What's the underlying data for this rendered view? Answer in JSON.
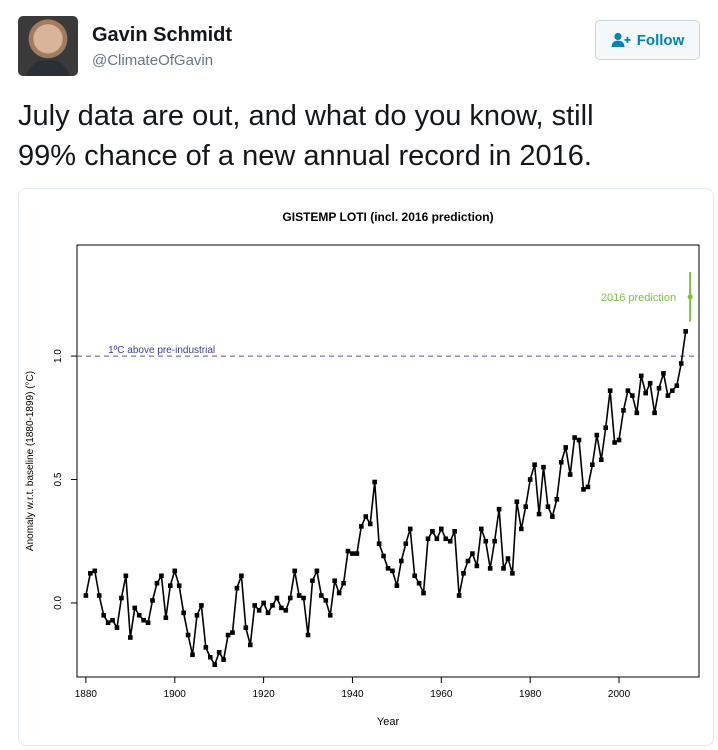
{
  "tweet": {
    "display_name": "Gavin Schmidt",
    "screen_name": "@ClimateOfGavin",
    "follow_label": "Follow",
    "text_line1": "July data are out, and what do you know, still",
    "text_line2": "99% chance of a new annual record in 2016."
  },
  "icons": {
    "follow": "add-user-icon",
    "avatar": "user-photo"
  },
  "colors": {
    "series": "#000000",
    "threshold": "#3a3aa0",
    "prediction": "#7ac142",
    "follow_text": "#0084b4"
  },
  "chart_data": {
    "type": "line",
    "title": "GISTEMP LOTI (incl. 2016 prediction)",
    "xlabel": "Year",
    "ylabel": "Anomaly w.r.t. baseline (1880-1899) (°C)",
    "xlim": [
      1878,
      2018
    ],
    "ylim": [
      -0.3,
      1.45
    ],
    "xticks": [
      1880,
      1900,
      1920,
      1940,
      1960,
      1980,
      2000
    ],
    "yticks": [
      0.0,
      0.5,
      1.0
    ],
    "ytick_labels": [
      "0.0",
      "0.5",
      "1.0"
    ],
    "threshold": {
      "value": 1.0,
      "label": "1ºC above pre-industrial"
    },
    "prediction": {
      "year": 2016,
      "value": 1.24,
      "low": 1.14,
      "high": 1.34,
      "label": "2016 prediction"
    },
    "series": [
      {
        "x": [
          1880,
          1881,
          1882,
          1883,
          1884,
          1885,
          1886,
          1887,
          1888,
          1889,
          1890,
          1891,
          1892,
          1893,
          1894,
          1895,
          1896,
          1897,
          1898,
          1899,
          1900,
          1901,
          1902,
          1903,
          1904,
          1905,
          1906,
          1907,
          1908,
          1909,
          1910,
          1911,
          1912,
          1913,
          1914,
          1915,
          1916,
          1917,
          1918,
          1919,
          1920,
          1921,
          1922,
          1923,
          1924,
          1925,
          1926,
          1927,
          1928,
          1929,
          1930,
          1931,
          1932,
          1933,
          1934,
          1935,
          1936,
          1937,
          1938,
          1939,
          1940,
          1941,
          1942,
          1943,
          1944,
          1945,
          1946,
          1947,
          1948,
          1949,
          1950,
          1951,
          1952,
          1953,
          1954,
          1955,
          1956,
          1957,
          1958,
          1959,
          1960,
          1961,
          1962,
          1963,
          1964,
          1965,
          1966,
          1967,
          1968,
          1969,
          1970,
          1971,
          1972,
          1973,
          1974,
          1975,
          1976,
          1977,
          1978,
          1979,
          1980,
          1981,
          1982,
          1983,
          1984,
          1985,
          1986,
          1987,
          1988,
          1989,
          1990,
          1991,
          1992,
          1993,
          1994,
          1995,
          1996,
          1997,
          1998,
          1999,
          2000,
          2001,
          2002,
          2003,
          2004,
          2005,
          2006,
          2007,
          2008,
          2009,
          2010,
          2011,
          2012,
          2013,
          2014,
          2015
        ],
        "y": [
          0.03,
          0.12,
          0.13,
          0.03,
          -0.05,
          -0.08,
          -0.07,
          -0.1,
          0.02,
          0.11,
          -0.14,
          -0.02,
          -0.05,
          -0.07,
          -0.08,
          0.01,
          0.08,
          0.11,
          -0.06,
          0.07,
          0.13,
          0.07,
          -0.04,
          -0.13,
          -0.21,
          -0.05,
          -0.01,
          -0.18,
          -0.22,
          -0.25,
          -0.2,
          -0.23,
          -0.13,
          -0.12,
          0.06,
          0.11,
          -0.1,
          -0.17,
          -0.01,
          -0.03,
          0.0,
          -0.04,
          -0.01,
          0.02,
          -0.02,
          -0.03,
          0.02,
          0.13,
          0.03,
          0.02,
          -0.13,
          0.09,
          0.13,
          0.03,
          0.01,
          -0.05,
          0.09,
          0.04,
          0.08,
          0.21,
          0.2,
          0.2,
          0.31,
          0.35,
          0.32,
          0.49,
          0.24,
          0.19,
          0.14,
          0.13,
          0.07,
          0.17,
          0.24,
          0.3,
          0.11,
          0.08,
          0.04,
          0.26,
          0.29,
          0.26,
          0.3,
          0.26,
          0.25,
          0.29,
          0.03,
          0.12,
          0.17,
          0.2,
          0.15,
          0.3,
          0.25,
          0.14,
          0.25,
          0.38,
          0.14,
          0.18,
          0.12,
          0.41,
          0.3,
          0.39,
          0.5,
          0.56,
          0.36,
          0.55,
          0.39,
          0.35,
          0.42,
          0.57,
          0.63,
          0.52,
          0.67,
          0.66,
          0.46,
          0.47,
          0.56,
          0.68,
          0.58,
          0.71,
          0.86,
          0.65,
          0.66,
          0.78,
          0.86,
          0.84,
          0.77,
          0.92,
          0.85,
          0.89,
          0.77,
          0.87,
          0.93,
          0.84,
          0.86,
          0.88,
          0.97,
          1.1
        ]
      }
    ]
  }
}
